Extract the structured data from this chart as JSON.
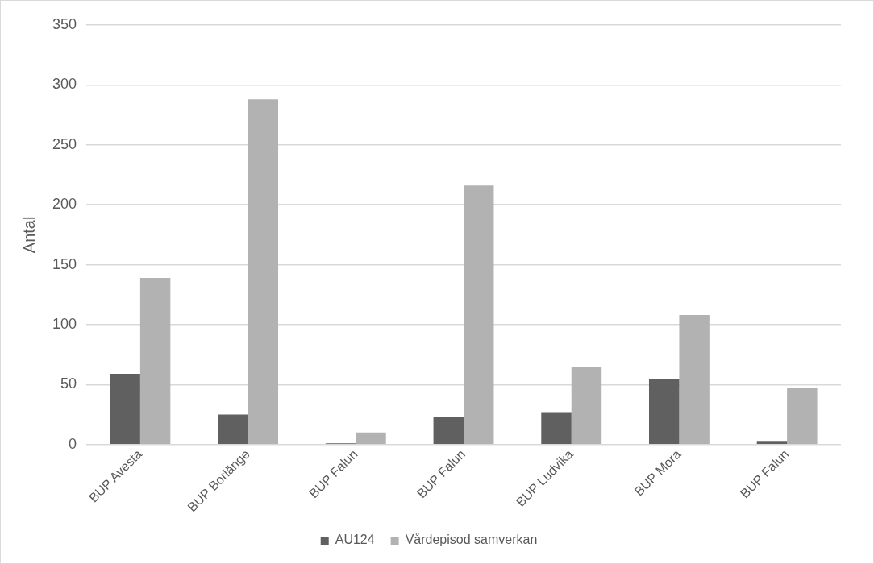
{
  "chart_data": {
    "type": "bar",
    "ylabel": "Antal",
    "categories": [
      "BUP Avesta",
      "BUP Borlänge",
      "BUP Falun",
      "BUP Falun",
      "BUP Ludvika",
      "BUP Mora",
      "BUP Falun"
    ],
    "series": [
      {
        "name": "AU124",
        "color": "#606060",
        "values": [
          59,
          25,
          1,
          23,
          27,
          55,
          3
        ]
      },
      {
        "name": "Vårdepisod samverkan",
        "color": "#b2b2b2",
        "values": [
          139,
          288,
          10,
          216,
          65,
          108,
          47
        ]
      }
    ],
    "ylim": [
      0,
      350
    ],
    "yticks": [
      0,
      50,
      100,
      150,
      200,
      250,
      300,
      350
    ],
    "grid": "y",
    "legend": "bottom"
  }
}
